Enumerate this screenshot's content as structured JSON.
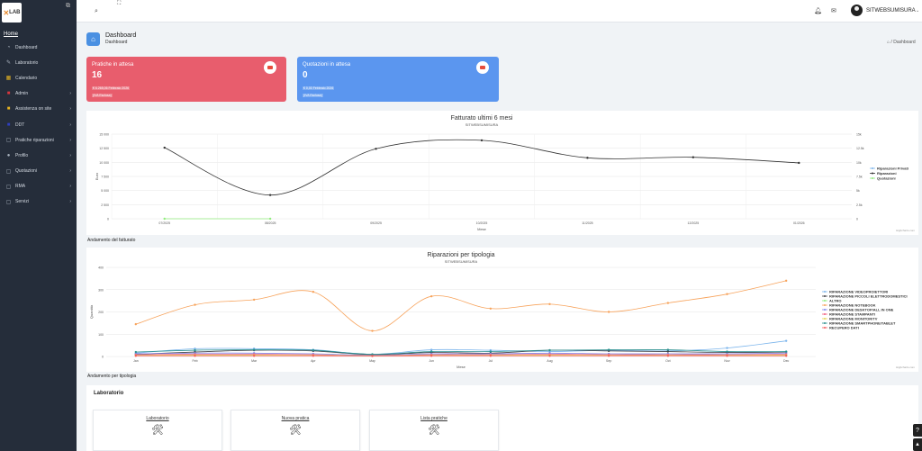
{
  "sidebar": {
    "logo_text": "LAB",
    "home_label": "Home",
    "items": [
      {
        "label": "Dashboard",
        "icon": "gauge-icon",
        "has_children": false
      },
      {
        "label": "Laboratorio",
        "icon": "wrench-icon",
        "has_children": false
      },
      {
        "label": "Calendario",
        "icon": "calendar-icon",
        "has_children": false
      },
      {
        "label": "Admin",
        "icon": "admin-icon",
        "has_children": true
      },
      {
        "label": "Assistenza on site",
        "icon": "briefcase-icon",
        "has_children": true
      },
      {
        "label": "DDT",
        "icon": "truck-icon",
        "has_children": true
      },
      {
        "label": "Pratiche riparazioni",
        "icon": "file-icon",
        "has_children": true
      },
      {
        "label": "Profilo",
        "icon": "user-icon",
        "has_children": true
      },
      {
        "label": "Quotazioni",
        "icon": "document-icon",
        "has_children": true
      },
      {
        "label": "RMA",
        "icon": "box-icon",
        "has_children": true
      },
      {
        "label": "Servizi",
        "icon": "list-icon",
        "has_children": true
      }
    ]
  },
  "topbar": {
    "username": "SITWEBSUMISURA"
  },
  "header": {
    "title": "Dashboard",
    "subtitle": "Dashboard",
    "breadcrumb": "Dashboard"
  },
  "cards": [
    {
      "title": "Pratiche in attesa",
      "count": "16",
      "line1": "€ 6.265,06 Febbraio 2026",
      "line2": "(IVA Esclusa)",
      "color": "#e85d6d"
    },
    {
      "title": "Quotazioni in attesa",
      "count": "0",
      "line1": "€ 0,00 Febbraio 2026",
      "line2": "(IVA Esclusa)",
      "color": "#5b96ef"
    }
  ],
  "chart1_caption": "Andamento del fatturato",
  "chart2_caption": "Andamento per tipologia",
  "chart_data": [
    {
      "type": "line",
      "title": "Fatturato ultimi 6 mesi",
      "subtitle": "SITWEBSUMISURA",
      "xlabel": "Mese",
      "ylabel": "Euro",
      "categories": [
        "07/2025",
        "08/2025",
        "09/2025",
        "10/2025",
        "11/2025",
        "12/2025",
        "01/2026"
      ],
      "ylim": [
        0,
        15000
      ],
      "yticks": [
        "0",
        "2 500",
        "5 000",
        "7 500",
        "10 000",
        "12 500",
        "15 000"
      ],
      "y2ticks": [
        "0",
        "2.5k",
        "5k",
        "7.5k",
        "10k",
        "12.5k",
        "15k"
      ],
      "series": [
        {
          "name": "Riparazioni Privati",
          "color": "#7cb5ec",
          "values": [
            null,
            null,
            null,
            null,
            null,
            null,
            null
          ]
        },
        {
          "name": "Riparazioni",
          "color": "#333333",
          "values": [
            12600,
            4200,
            12400,
            13900,
            10800,
            10900,
            9900
          ]
        },
        {
          "name": "Quotazioni",
          "color": "#90ed7d",
          "values": [
            0,
            0,
            null,
            null,
            null,
            null,
            null
          ]
        }
      ],
      "legend": "right",
      "credits": "Highcharts.com"
    },
    {
      "type": "line",
      "title": "Riparazioni per tipologia",
      "subtitle": "SITWEBSUMISURA",
      "xlabel": "Mese",
      "ylabel": "Quantità",
      "categories": [
        "Jan",
        "Feb",
        "Mar",
        "Apr",
        "May",
        "Jun",
        "Jul",
        "Aug",
        "Sep",
        "Oct",
        "Nov",
        "Dec"
      ],
      "ylim": [
        0,
        400
      ],
      "yticks": [
        "0",
        "100",
        "200",
        "300",
        "400"
      ],
      "series": [
        {
          "name": "RIPARAZIONE VIDEOPROIETTORI",
          "color": "#7cb5ec",
          "values": [
            15,
            35,
            35,
            30,
            10,
            30,
            28,
            22,
            28,
            25,
            38,
            70
          ]
        },
        {
          "name": "RIPARAZIONE PICCOLI ELETTRODOMESTICI",
          "color": "#434348",
          "values": [
            10,
            20,
            28,
            25,
            8,
            18,
            15,
            28,
            25,
            22,
            18,
            20
          ]
        },
        {
          "name": "ALTRO",
          "color": "#90ed7d",
          "values": [
            5,
            5,
            5,
            5,
            3,
            5,
            5,
            5,
            5,
            5,
            5,
            5
          ]
        },
        {
          "name": "RIPARAZIONE NOTEBOOK",
          "color": "#f7a35c",
          "values": [
            145,
            232,
            255,
            290,
            115,
            270,
            215,
            235,
            200,
            240,
            280,
            340
          ]
        },
        {
          "name": "RIPARAZIONE DESKTOP/ALL IN ONE",
          "color": "#8085e9",
          "values": [
            12,
            15,
            15,
            12,
            6,
            12,
            12,
            15,
            12,
            12,
            12,
            15
          ]
        },
        {
          "name": "RIPARAZIONE STAMPANTI",
          "color": "#f15c80",
          "values": [
            8,
            10,
            10,
            8,
            4,
            8,
            8,
            10,
            8,
            8,
            8,
            10
          ]
        },
        {
          "name": "RIPARAZIONE MONITOR/TV",
          "color": "#e4d354",
          "values": [
            5,
            6,
            6,
            5,
            3,
            5,
            5,
            6,
            5,
            5,
            5,
            6
          ]
        },
        {
          "name": "RIPARAZIONE SMARTPHONE/TABLET",
          "color": "#2b908f",
          "values": [
            20,
            28,
            30,
            28,
            10,
            22,
            22,
            28,
            30,
            30,
            22,
            22
          ]
        },
        {
          "name": "RECUPERO DATI",
          "color": "#f45b5b",
          "values": [
            3,
            3,
            3,
            3,
            2,
            3,
            3,
            3,
            3,
            3,
            3,
            3
          ]
        }
      ],
      "legend": "right",
      "credits": "Highcharts.com"
    }
  ],
  "lab_section": {
    "title": "Laboratorio",
    "tiles": [
      {
        "label": "Laboratorio"
      },
      {
        "label": "Nuova pratica"
      },
      {
        "label": "Lista pratiche"
      }
    ]
  },
  "colors": {
    "sidebar_bg": "#252d3a",
    "accent": "#4a90e2"
  }
}
